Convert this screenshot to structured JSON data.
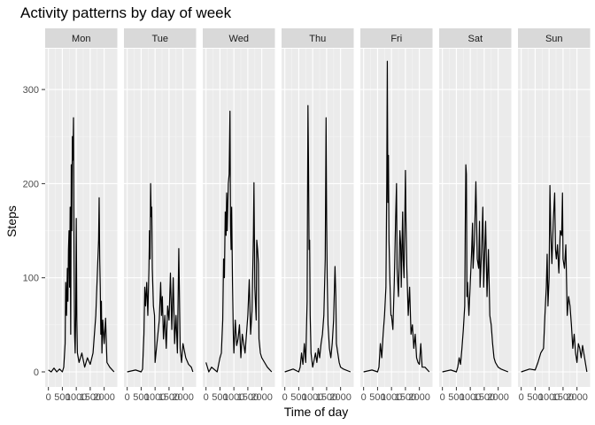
{
  "chart_data": {
    "type": "line",
    "title": "Activity patterns by day of week",
    "xlabel": "Time of day",
    "ylabel": "Steps",
    "facet_by": "day of week",
    "xlim": [
      0,
      2355
    ],
    "ylim": [
      0,
      330
    ],
    "x_ticks": [
      0,
      500,
      1000,
      1500,
      2000
    ],
    "x_tick_labels": [
      "0",
      "500",
      "1000",
      "1500",
      "2000"
    ],
    "y_ticks": [
      0,
      100,
      200,
      300
    ],
    "y_tick_labels": [
      "0",
      "100",
      "200",
      "300"
    ],
    "panels": [
      {
        "label": "Mon",
        "points": [
          [
            0,
            2
          ],
          [
            100,
            0
          ],
          [
            200,
            4
          ],
          [
            300,
            0
          ],
          [
            400,
            3
          ],
          [
            500,
            0
          ],
          [
            550,
            5
          ],
          [
            600,
            30
          ],
          [
            620,
            95
          ],
          [
            650,
            60
          ],
          [
            680,
            110
          ],
          [
            700,
            75
          ],
          [
            720,
            130
          ],
          [
            740,
            150
          ],
          [
            760,
            90
          ],
          [
            780,
            175
          ],
          [
            800,
            40
          ],
          [
            820,
            220
          ],
          [
            840,
            150
          ],
          [
            860,
            250
          ],
          [
            880,
            225
          ],
          [
            900,
            270
          ],
          [
            920,
            120
          ],
          [
            940,
            40
          ],
          [
            960,
            20
          ],
          [
            980,
            60
          ],
          [
            1000,
            163
          ],
          [
            1020,
            55
          ],
          [
            1040,
            20
          ],
          [
            1100,
            10
          ],
          [
            1200,
            20
          ],
          [
            1300,
            5
          ],
          [
            1400,
            15
          ],
          [
            1500,
            8
          ],
          [
            1600,
            20
          ],
          [
            1700,
            60
          ],
          [
            1750,
            100
          ],
          [
            1800,
            140
          ],
          [
            1820,
            185
          ],
          [
            1840,
            120
          ],
          [
            1860,
            90
          ],
          [
            1880,
            40
          ],
          [
            1900,
            75
          ],
          [
            1920,
            20
          ],
          [
            1950,
            55
          ],
          [
            2000,
            30
          ],
          [
            2050,
            57
          ],
          [
            2100,
            10
          ],
          [
            2200,
            5
          ],
          [
            2355,
            0
          ]
        ]
      },
      {
        "label": "Tue",
        "points": [
          [
            0,
            0
          ],
          [
            300,
            2
          ],
          [
            500,
            0
          ],
          [
            550,
            3
          ],
          [
            600,
            40
          ],
          [
            630,
            90
          ],
          [
            660,
            70
          ],
          [
            700,
            95
          ],
          [
            740,
            60
          ],
          [
            780,
            110
          ],
          [
            800,
            150
          ],
          [
            820,
            120
          ],
          [
            840,
            200
          ],
          [
            860,
            165
          ],
          [
            880,
            175
          ],
          [
            900,
            110
          ],
          [
            920,
            90
          ],
          [
            940,
            70
          ],
          [
            980,
            60
          ],
          [
            1000,
            10
          ],
          [
            1050,
            25
          ],
          [
            1100,
            40
          ],
          [
            1150,
            55
          ],
          [
            1200,
            95
          ],
          [
            1230,
            60
          ],
          [
            1260,
            80
          ],
          [
            1300,
            35
          ],
          [
            1350,
            60
          ],
          [
            1400,
            25
          ],
          [
            1450,
            70
          ],
          [
            1500,
            55
          ],
          [
            1550,
            105
          ],
          [
            1600,
            45
          ],
          [
            1650,
            100
          ],
          [
            1700,
            30
          ],
          [
            1750,
            60
          ],
          [
            1800,
            20
          ],
          [
            1850,
            131
          ],
          [
            1900,
            25
          ],
          [
            1950,
            10
          ],
          [
            2000,
            30
          ],
          [
            2100,
            15
          ],
          [
            2200,
            8
          ],
          [
            2300,
            5
          ],
          [
            2355,
            0
          ]
        ]
      },
      {
        "label": "Wed",
        "points": [
          [
            0,
            10
          ],
          [
            100,
            0
          ],
          [
            200,
            5
          ],
          [
            400,
            0
          ],
          [
            500,
            15
          ],
          [
            550,
            20
          ],
          [
            600,
            55
          ],
          [
            630,
            120
          ],
          [
            660,
            100
          ],
          [
            690,
            170
          ],
          [
            720,
            145
          ],
          [
            740,
            190
          ],
          [
            760,
            150
          ],
          [
            800,
            200
          ],
          [
            830,
            210
          ],
          [
            860,
            277
          ],
          [
            880,
            155
          ],
          [
            900,
            130
          ],
          [
            920,
            175
          ],
          [
            950,
            95
          ],
          [
            980,
            40
          ],
          [
            1000,
            20
          ],
          [
            1050,
            55
          ],
          [
            1100,
            28
          ],
          [
            1150,
            35
          ],
          [
            1200,
            50
          ],
          [
            1250,
            15
          ],
          [
            1300,
            40
          ],
          [
            1400,
            20
          ],
          [
            1500,
            60
          ],
          [
            1550,
            98
          ],
          [
            1600,
            40
          ],
          [
            1650,
            65
          ],
          [
            1700,
            145
          ],
          [
            1720,
            201
          ],
          [
            1750,
            90
          ],
          [
            1800,
            55
          ],
          [
            1820,
            140
          ],
          [
            1850,
            130
          ],
          [
            1880,
            115
          ],
          [
            1900,
            35
          ],
          [
            1950,
            20
          ],
          [
            2000,
            15
          ],
          [
            2100,
            10
          ],
          [
            2200,
            5
          ],
          [
            2355,
            0
          ]
        ]
      },
      {
        "label": "Thu",
        "points": [
          [
            0,
            0
          ],
          [
            300,
            3
          ],
          [
            500,
            0
          ],
          [
            550,
            5
          ],
          [
            600,
            20
          ],
          [
            650,
            8
          ],
          [
            700,
            30
          ],
          [
            750,
            10
          ],
          [
            800,
            75
          ],
          [
            830,
            283
          ],
          [
            850,
            220
          ],
          [
            870,
            130
          ],
          [
            890,
            140
          ],
          [
            910,
            60
          ],
          [
            940,
            20
          ],
          [
            1000,
            5
          ],
          [
            1100,
            20
          ],
          [
            1150,
            10
          ],
          [
            1200,
            25
          ],
          [
            1250,
            15
          ],
          [
            1300,
            30
          ],
          [
            1350,
            40
          ],
          [
            1400,
            60
          ],
          [
            1450,
            120
          ],
          [
            1480,
            270
          ],
          [
            1500,
            160
          ],
          [
            1520,
            100
          ],
          [
            1550,
            50
          ],
          [
            1600,
            25
          ],
          [
            1650,
            15
          ],
          [
            1700,
            30
          ],
          [
            1750,
            55
          ],
          [
            1800,
            112
          ],
          [
            1830,
            80
          ],
          [
            1850,
            30
          ],
          [
            1900,
            20
          ],
          [
            1950,
            10
          ],
          [
            2000,
            5
          ],
          [
            2100,
            3
          ],
          [
            2355,
            0
          ]
        ]
      },
      {
        "label": "Fri",
        "points": [
          [
            0,
            0
          ],
          [
            300,
            2
          ],
          [
            500,
            0
          ],
          [
            550,
            5
          ],
          [
            600,
            30
          ],
          [
            650,
            15
          ],
          [
            700,
            40
          ],
          [
            750,
            60
          ],
          [
            800,
            90
          ],
          [
            830,
            200
          ],
          [
            850,
            330
          ],
          [
            870,
            180
          ],
          [
            890,
            230
          ],
          [
            910,
            140
          ],
          [
            940,
            100
          ],
          [
            980,
            60
          ],
          [
            1000,
            60
          ],
          [
            1050,
            45
          ],
          [
            1100,
            95
          ],
          [
            1150,
            165
          ],
          [
            1180,
            200
          ],
          [
            1200,
            110
          ],
          [
            1250,
            80
          ],
          [
            1300,
            150
          ],
          [
            1330,
            135
          ],
          [
            1350,
            90
          ],
          [
            1400,
            170
          ],
          [
            1420,
            120
          ],
          [
            1450,
            100
          ],
          [
            1500,
            214
          ],
          [
            1520,
            160
          ],
          [
            1550,
            110
          ],
          [
            1600,
            60
          ],
          [
            1650,
            90
          ],
          [
            1700,
            40
          ],
          [
            1750,
            50
          ],
          [
            1800,
            25
          ],
          [
            1850,
            40
          ],
          [
            1900,
            15
          ],
          [
            1950,
            10
          ],
          [
            2000,
            8
          ],
          [
            2050,
            30
          ],
          [
            2100,
            5
          ],
          [
            2200,
            5
          ],
          [
            2355,
            0
          ]
        ]
      },
      {
        "label": "Sat",
        "points": [
          [
            0,
            0
          ],
          [
            300,
            2
          ],
          [
            500,
            0
          ],
          [
            550,
            5
          ],
          [
            600,
            15
          ],
          [
            650,
            8
          ],
          [
            700,
            25
          ],
          [
            750,
            45
          ],
          [
            800,
            70
          ],
          [
            820,
            155
          ],
          [
            840,
            220
          ],
          [
            860,
            210
          ],
          [
            880,
            80
          ],
          [
            900,
            95
          ],
          [
            950,
            60
          ],
          [
            1000,
            95
          ],
          [
            1050,
            130
          ],
          [
            1080,
            158
          ],
          [
            1100,
            110
          ],
          [
            1150,
            140
          ],
          [
            1200,
            202
          ],
          [
            1220,
            170
          ],
          [
            1250,
            120
          ],
          [
            1300,
            110
          ],
          [
            1330,
            160
          ],
          [
            1350,
            90
          ],
          [
            1400,
            125
          ],
          [
            1450,
            175
          ],
          [
            1480,
            90
          ],
          [
            1500,
            110
          ],
          [
            1550,
            160
          ],
          [
            1600,
            80
          ],
          [
            1650,
            130
          ],
          [
            1700,
            60
          ],
          [
            1750,
            50
          ],
          [
            1800,
            30
          ],
          [
            1850,
            15
          ],
          [
            1900,
            10
          ],
          [
            2000,
            5
          ],
          [
            2100,
            3
          ],
          [
            2355,
            0
          ]
        ]
      },
      {
        "label": "Sun",
        "points": [
          [
            0,
            0
          ],
          [
            300,
            3
          ],
          [
            500,
            2
          ],
          [
            600,
            10
          ],
          [
            700,
            20
          ],
          [
            800,
            25
          ],
          [
            850,
            60
          ],
          [
            900,
            90
          ],
          [
            930,
            125
          ],
          [
            960,
            70
          ],
          [
            1000,
            100
          ],
          [
            1030,
            198
          ],
          [
            1060,
            150
          ],
          [
            1100,
            115
          ],
          [
            1150,
            160
          ],
          [
            1200,
            190
          ],
          [
            1230,
            130
          ],
          [
            1260,
            120
          ],
          [
            1300,
            135
          ],
          [
            1350,
            105
          ],
          [
            1400,
            150
          ],
          [
            1450,
            145
          ],
          [
            1480,
            190
          ],
          [
            1500,
            120
          ],
          [
            1550,
            110
          ],
          [
            1600,
            135
          ],
          [
            1650,
            60
          ],
          [
            1700,
            80
          ],
          [
            1750,
            70
          ],
          [
            1800,
            50
          ],
          [
            1850,
            25
          ],
          [
            1900,
            40
          ],
          [
            1950,
            20
          ],
          [
            2000,
            10
          ],
          [
            2050,
            30
          ],
          [
            2100,
            25
          ],
          [
            2150,
            15
          ],
          [
            2200,
            28
          ],
          [
            2355,
            0
          ]
        ]
      }
    ]
  }
}
